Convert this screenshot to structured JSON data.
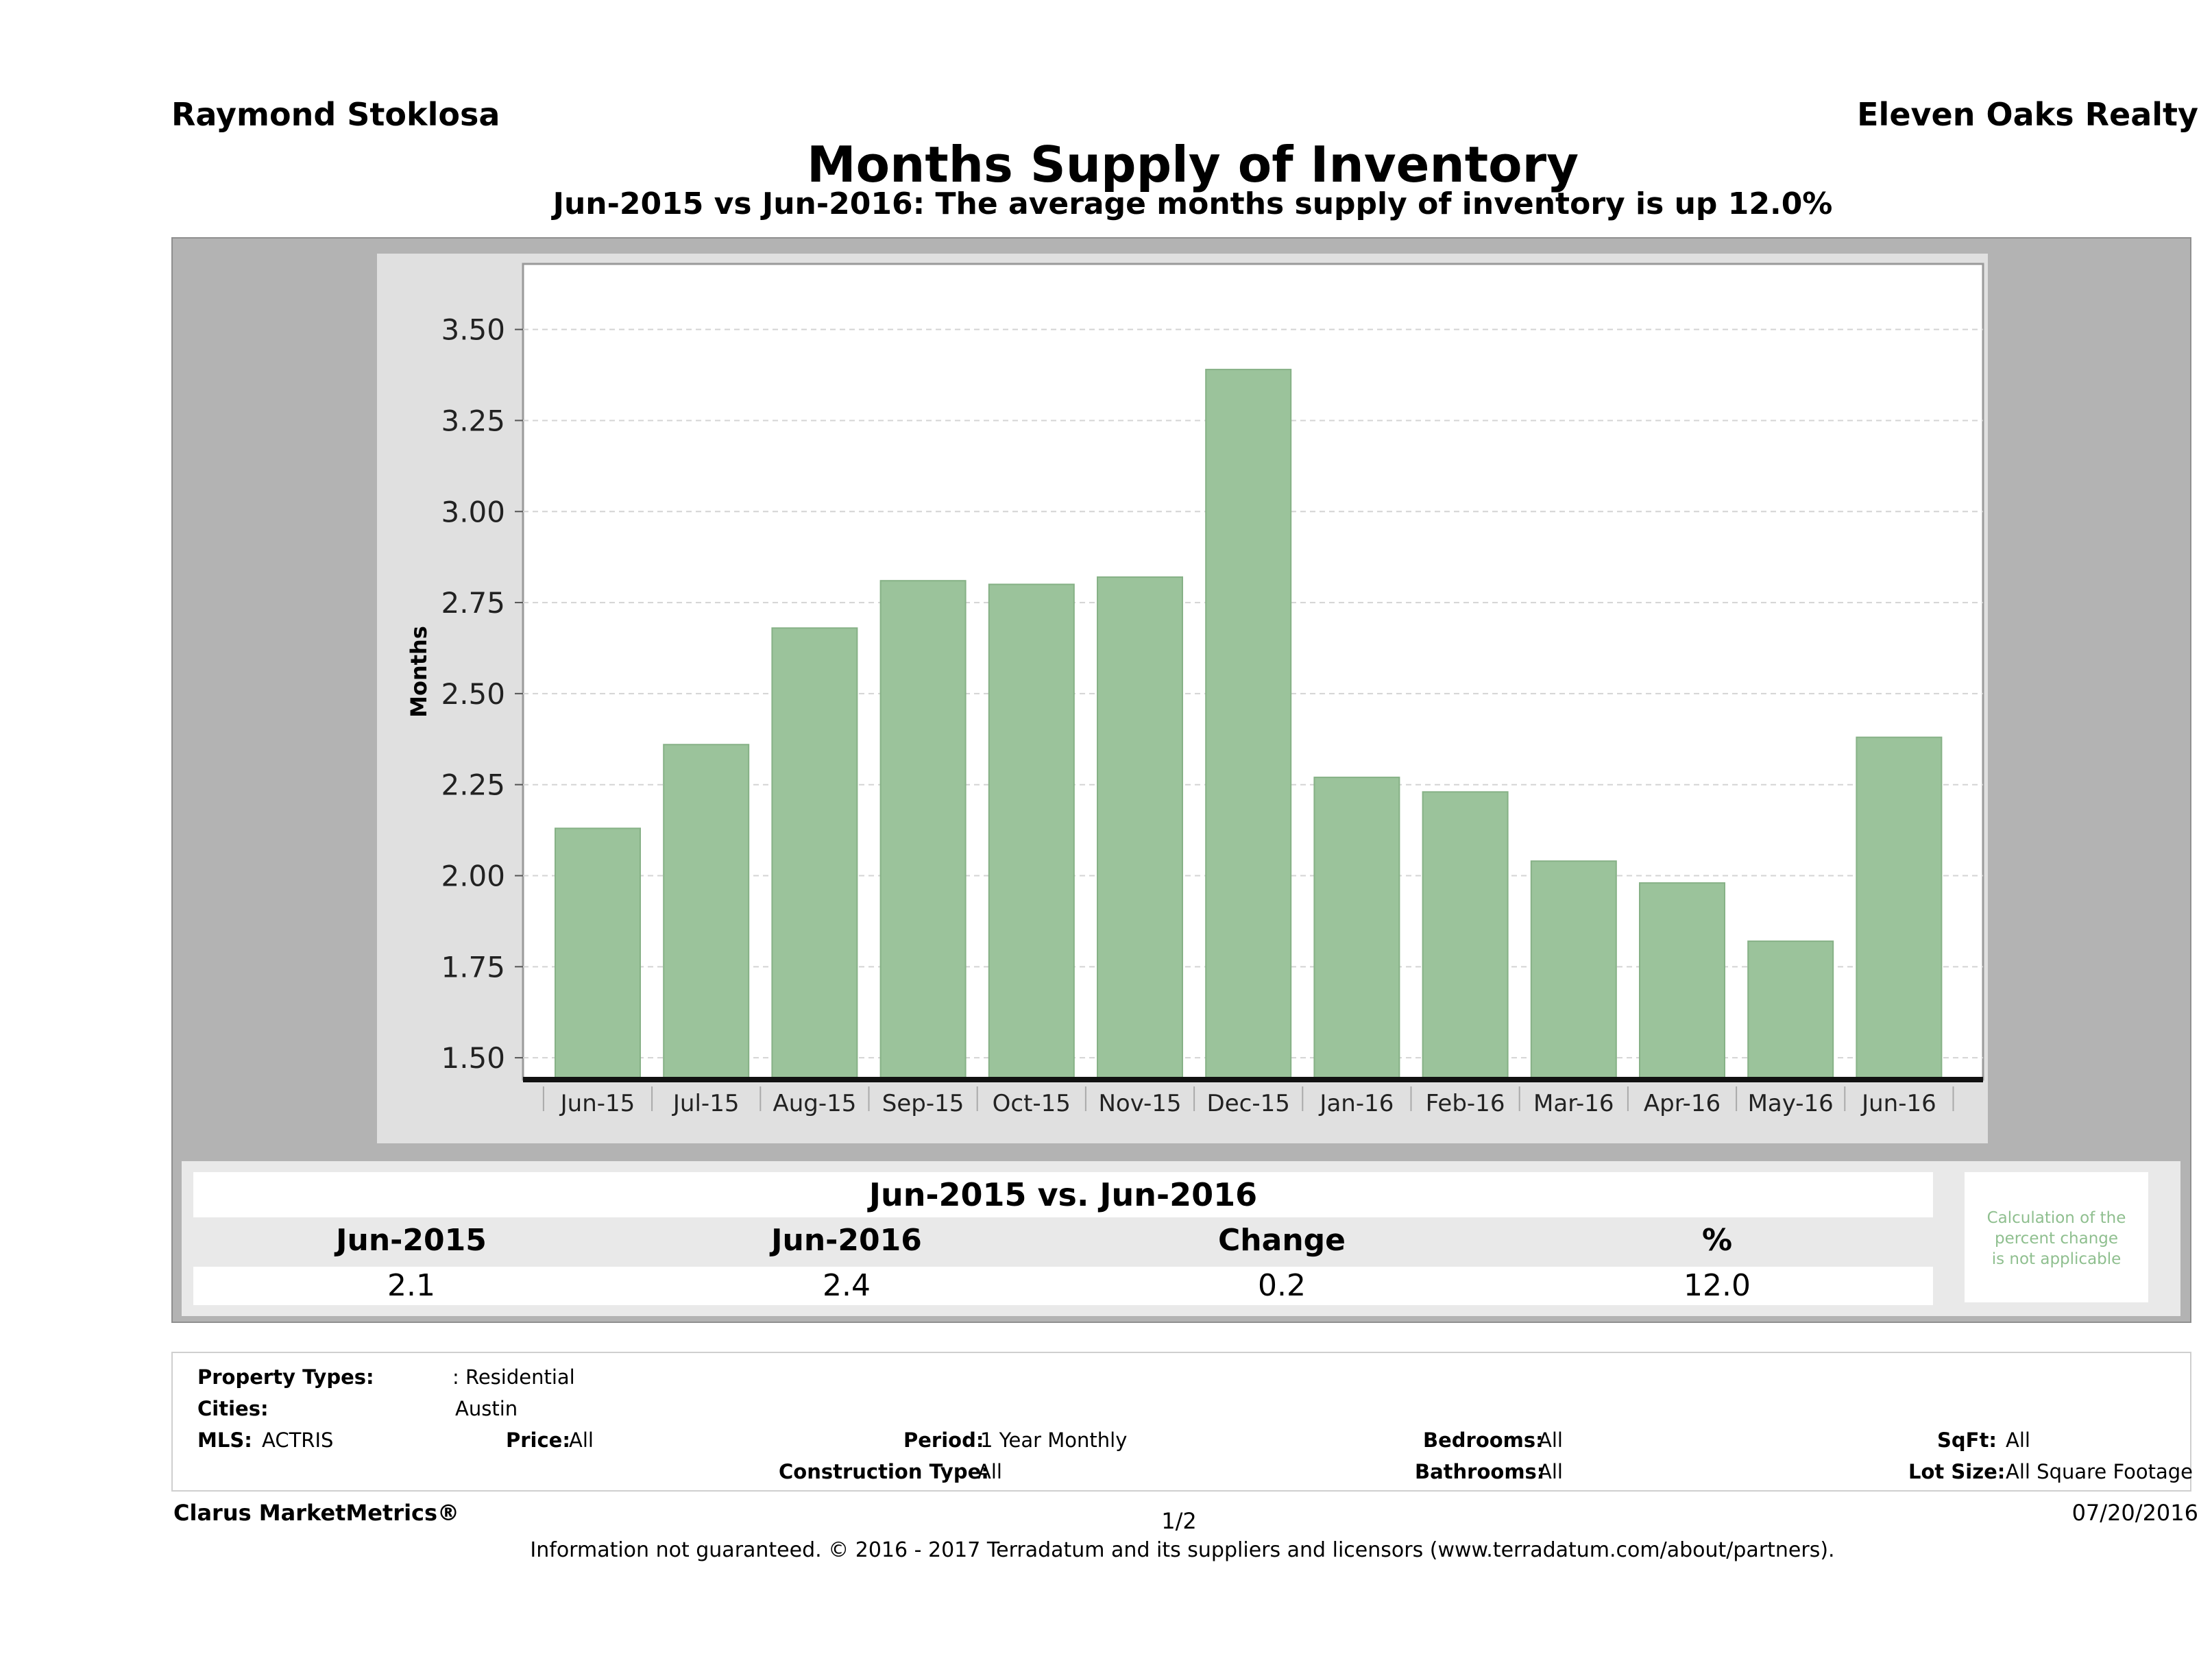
{
  "header": {
    "agent_name": "Raymond Stoklosa",
    "company": "Eleven Oaks Realty",
    "title": "Months Supply of Inventory",
    "subtitle": "Jun-2015 vs Jun-2016: The average months supply of inventory is up 12.0%"
  },
  "chart_data": {
    "type": "bar",
    "title": "",
    "xlabel": "",
    "ylabel": "Months",
    "categories": [
      "Jun-15",
      "Jul-15",
      "Aug-15",
      "Sep-15",
      "Oct-15",
      "Nov-15",
      "Dec-15",
      "Jan-16",
      "Feb-16",
      "Mar-16",
      "Apr-16",
      "May-16",
      "Jun-16"
    ],
    "values": [
      2.13,
      2.36,
      2.68,
      2.81,
      2.8,
      2.82,
      3.39,
      2.27,
      2.23,
      2.04,
      1.98,
      1.82,
      2.38
    ],
    "ylim": [
      1.44,
      3.68
    ],
    "yticks": [
      "1.50",
      "1.75",
      "2.00",
      "2.25",
      "2.50",
      "2.75",
      "3.00",
      "3.25",
      "3.50"
    ],
    "grid": true,
    "bar_color": "#9bc39b"
  },
  "comparison": {
    "heading": "Jun-2015 vs. Jun-2016",
    "labels": {
      "from": "Jun-2015",
      "to": "Jun-2016",
      "change": "Change",
      "pct": "%"
    },
    "values": {
      "from": "2.1",
      "to": "2.4",
      "change": "0.2",
      "pct": "12.0"
    },
    "note": [
      "Calculation of the",
      "percent change",
      "is not applicable"
    ]
  },
  "filters": {
    "property_types_label": "Property Types:",
    "property_types_value": ": Residential",
    "cities_label": "Cities:",
    "cities_value": "Austin",
    "mls_label": "MLS:",
    "mls_value": "ACTRIS",
    "price_label": "Price:",
    "price_value": "All",
    "period_label": "Period:",
    "period_value": "1 Year Monthly",
    "construction_label": "Construction Type:",
    "construction_value": "All",
    "bedrooms_label": "Bedrooms:",
    "bedrooms_value": "All",
    "bathrooms_label": "Bathrooms:",
    "bathrooms_value": "All",
    "sqft_label": "SqFt:",
    "sqft_value": "All",
    "lotsize_label": "Lot Size:",
    "lotsize_value": "All Square Footage"
  },
  "footer": {
    "brand": "Clarus MarketMetrics®",
    "page": "1/2",
    "date": "07/20/2016",
    "disclaimer": "Information not guaranteed. © 2016 - 2017 Terradatum and its suppliers and licensors (www.terradatum.com/about/partners)."
  }
}
